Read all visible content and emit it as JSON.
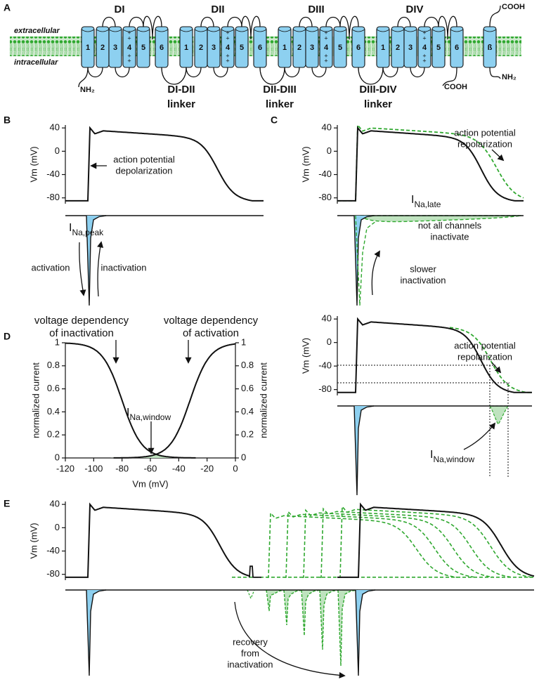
{
  "panel_a": {
    "label": "A",
    "extracellular": "extracellular",
    "intracellular": "intracellular",
    "domains": [
      "DI",
      "DII",
      "DIII",
      "DIV"
    ],
    "segments": [
      "1",
      "2",
      "3",
      "4",
      "5",
      "6"
    ],
    "charge": "+",
    "beta": "ß",
    "n_terminus": "NH₂",
    "c_terminus": "COOH",
    "beta_c_terminus": "COOH",
    "beta_n_terminus": "NH₂",
    "linkers": [
      [
        "DI-DII",
        "linker"
      ],
      [
        "DII-DIII",
        "linker"
      ],
      [
        "DIII-DIV",
        "linker"
      ]
    ]
  },
  "panel_b": {
    "label": "B",
    "y_axis_label": "Vm (mV)",
    "ylim": [
      -90,
      45
    ],
    "yticks": [
      40,
      0,
      -40,
      -80
    ],
    "depolarization": [
      "action potential",
      "depolarization"
    ],
    "current": {
      "main": "I",
      "sub": "Na,peak"
    },
    "activation": "activation",
    "inactivation": "inactivation"
  },
  "panel_c": {
    "label": "C",
    "y_axis_label": "Vm (mV)",
    "ylim": [
      -90,
      45
    ],
    "yticks": [
      40,
      0,
      -40,
      -80
    ],
    "repolarization": [
      "action potential",
      "repolarization"
    ],
    "current": {
      "main": "I",
      "sub": "Na,late"
    },
    "not_all": [
      "not all channels",
      "inactivate"
    ],
    "slower": [
      "slower",
      "inactivation"
    ]
  },
  "panel_d": {
    "label": "D",
    "chart": {
      "x_label": "Vm (mV)",
      "y_label": "normalized current",
      "y2_label": "normalized current",
      "xlim": [
        -120,
        0
      ],
      "xticks": [
        -120,
        -100,
        -80,
        -60,
        -40,
        -20,
        0
      ],
      "ylim": [
        0,
        1
      ],
      "yticks": [
        0,
        0.2,
        0.4,
        0.6,
        0.8,
        1
      ],
      "inactivation": [
        "voltage dependency",
        "of inactivation"
      ],
      "activation": [
        "voltage dependency",
        "of activation"
      ],
      "window": {
        "main": "I",
        "sub": "Na,window"
      }
    },
    "trace": {
      "y_axis_label": "Vm (mV)",
      "ylim": [
        -90,
        45
      ],
      "yticks": [
        40,
        0,
        -40,
        -80
      ],
      "repolarization": [
        "action potential",
        "repolarization"
      ],
      "window": {
        "main": "I",
        "sub": "Na,window"
      }
    }
  },
  "panel_e": {
    "label": "E",
    "y_axis_label": "Vm (mV)",
    "ylim": [
      -90,
      45
    ],
    "yticks": [
      40,
      0,
      -40,
      -80
    ],
    "recovery": [
      "recovery",
      "from",
      "inactivation"
    ]
  }
}
